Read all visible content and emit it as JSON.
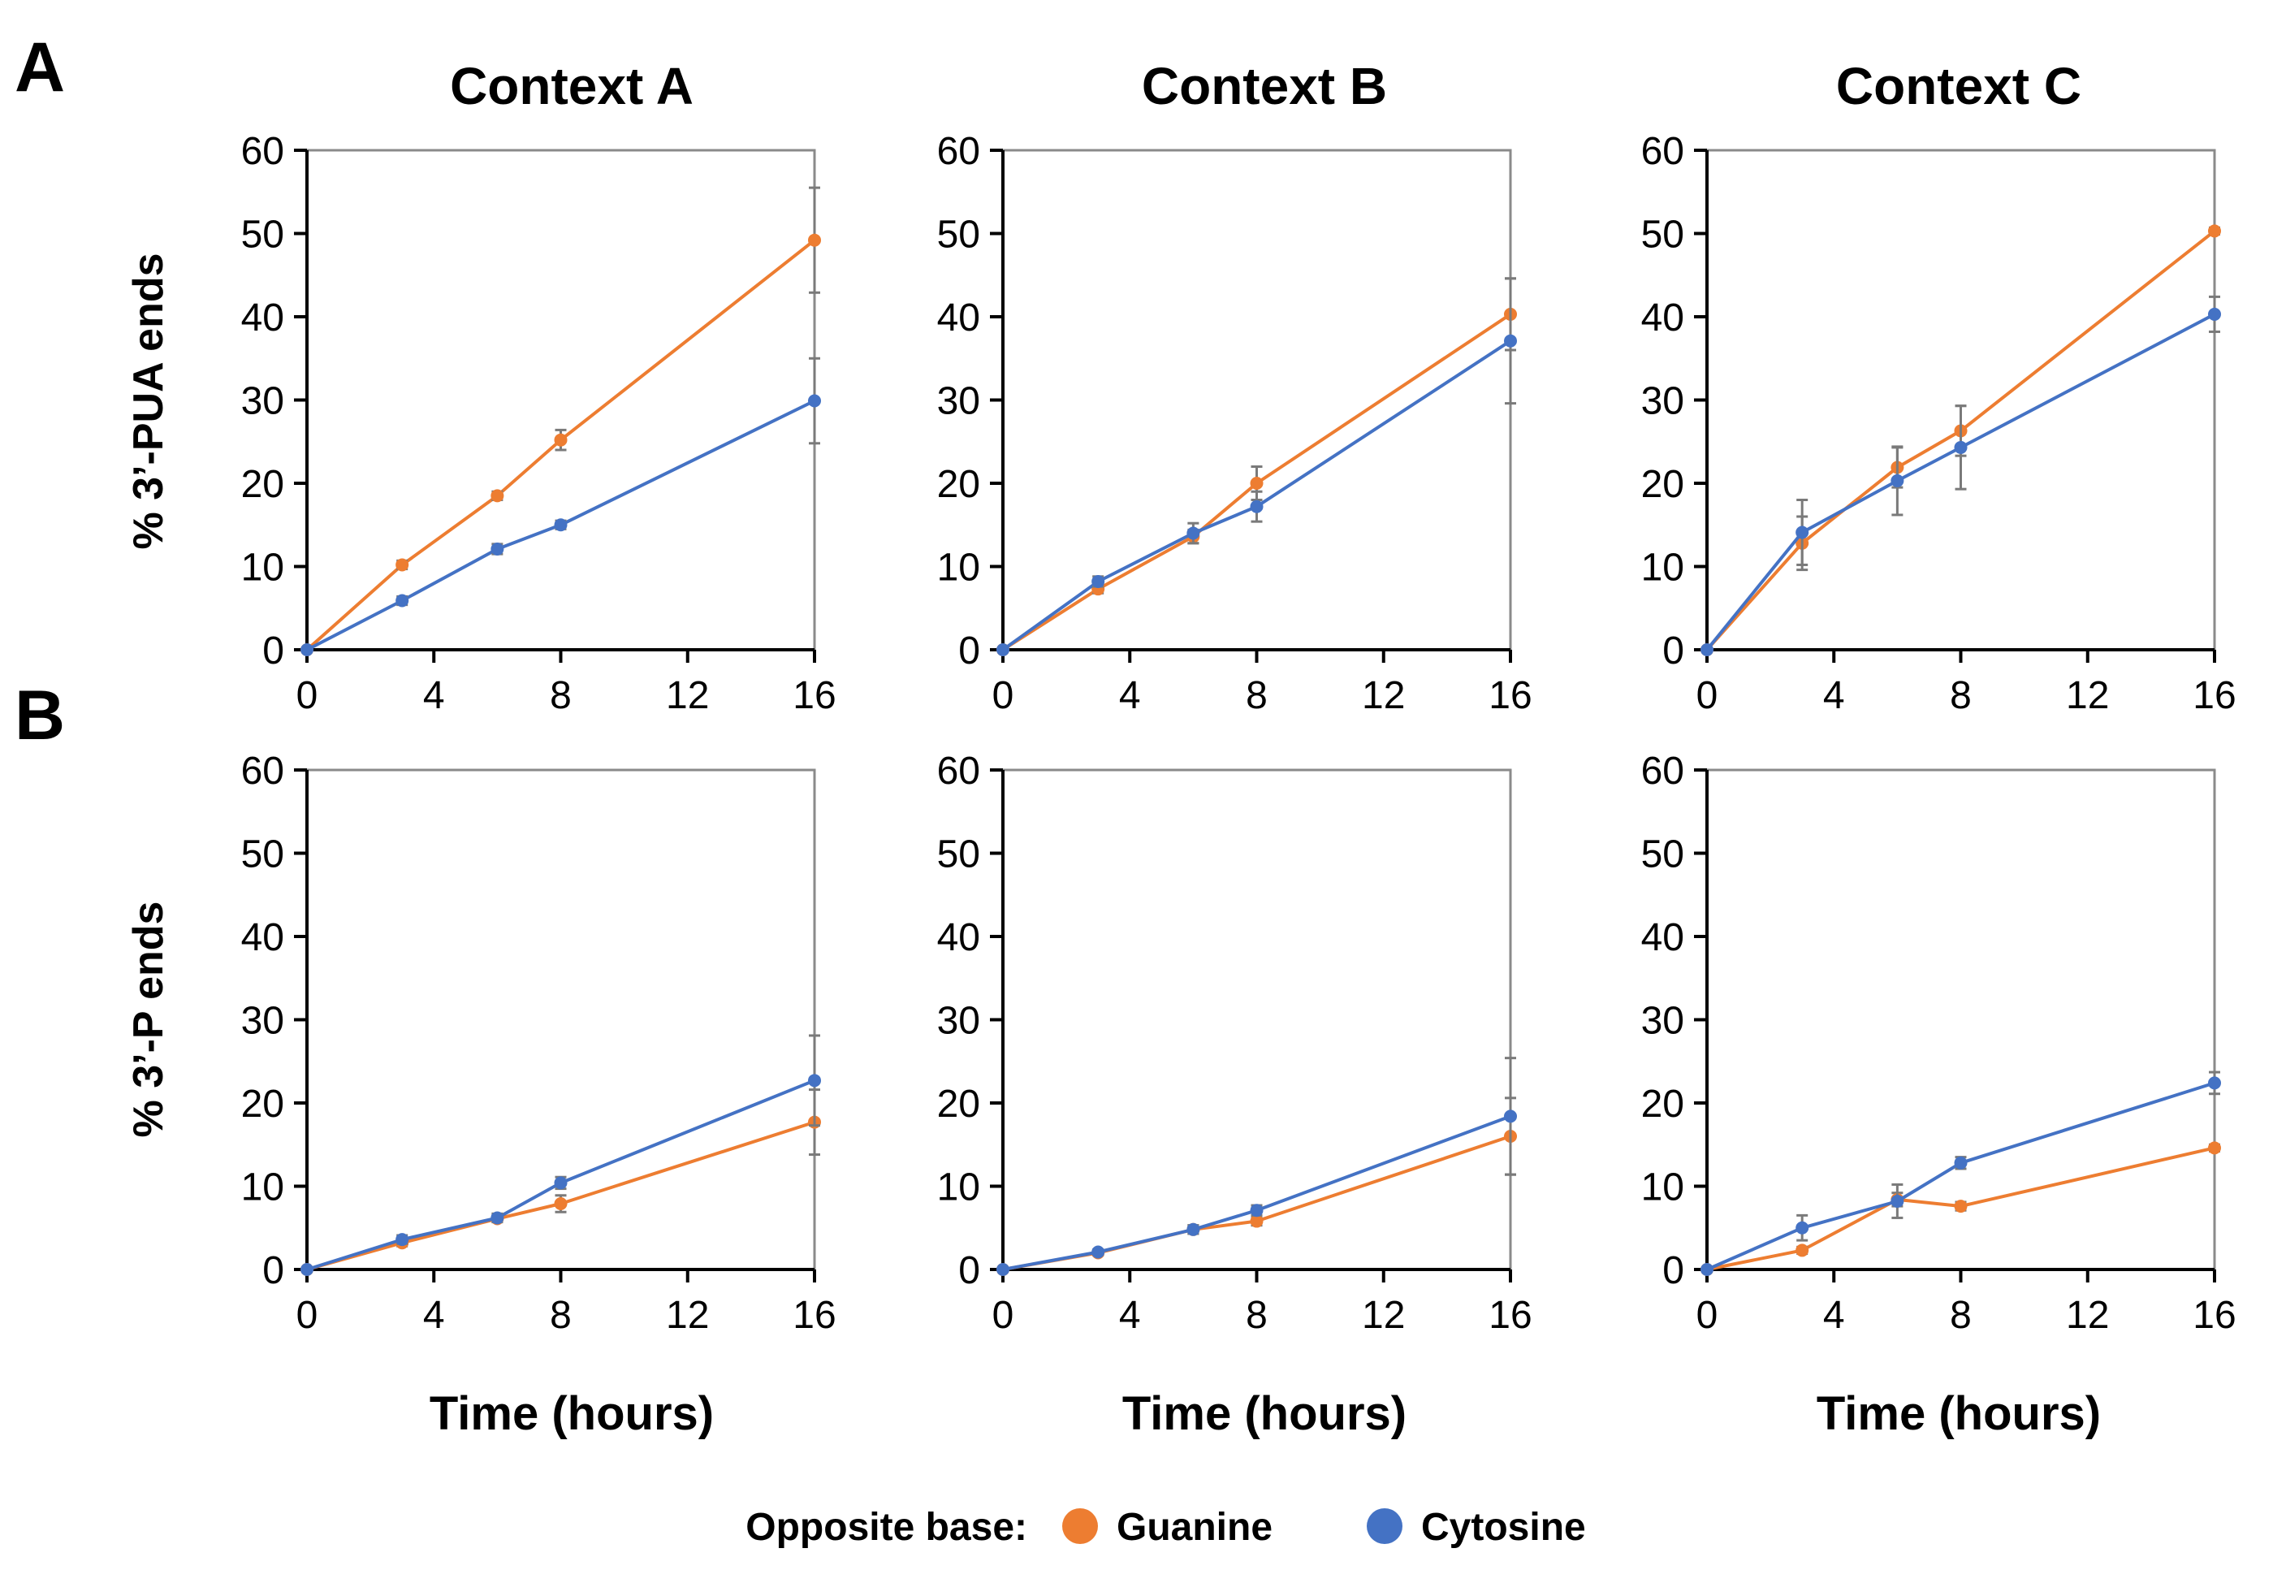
{
  "panel_labels": [
    "A",
    "B"
  ],
  "column_titles": [
    "Context A",
    "Context B",
    "Context C"
  ],
  "ylabels": [
    "% 3’-PUA ends",
    "% 3’-P ends"
  ],
  "xlabel": "Time (hours)",
  "legend": {
    "title": "Opposite base:",
    "items": [
      {
        "label": "Guanine",
        "color": "#ED7D31"
      },
      {
        "label": "Cytosine",
        "color": "#4472C4"
      }
    ]
  },
  "colors": {
    "guanine": "#ED7D31",
    "cytosine": "#4472C4",
    "errorbar": "#7a7a7a"
  },
  "chart_data": [
    {
      "row": "A",
      "col": "Context A",
      "type": "line",
      "ylabel": "% 3’-PUA ends",
      "xlim": [
        0,
        16
      ],
      "ylim": [
        0,
        60
      ],
      "xticks": [
        0,
        4,
        8,
        12,
        16
      ],
      "yticks": [
        0,
        10,
        20,
        30,
        40,
        50,
        60
      ],
      "x": [
        0,
        3,
        6,
        8,
        16
      ],
      "series": [
        {
          "name": "Guanine",
          "values": [
            0,
            10.2,
            18.5,
            25.2,
            49.2
          ],
          "err": [
            0,
            0.5,
            0.5,
            1.2,
            6.3
          ]
        },
        {
          "name": "Cytosine",
          "values": [
            0,
            5.9,
            12.1,
            15.0,
            29.9
          ],
          "err": [
            0,
            0.5,
            0.6,
            0.5,
            5.1
          ]
        }
      ]
    },
    {
      "row": "A",
      "col": "Context B",
      "type": "line",
      "ylabel": "% 3’-PUA ends",
      "xlim": [
        0,
        16
      ],
      "ylim": [
        0,
        60
      ],
      "xticks": [
        0,
        4,
        8,
        12,
        16
      ],
      "yticks": [
        0,
        10,
        20,
        30,
        40,
        50,
        60
      ],
      "x": [
        0,
        3,
        6,
        8,
        16
      ],
      "series": [
        {
          "name": "Guanine",
          "values": [
            0,
            7.3,
            13.6,
            20.0,
            40.3
          ],
          "err": [
            0,
            0.5,
            0.8,
            2.0,
            4.3
          ]
        },
        {
          "name": "Cytosine",
          "values": [
            0,
            8.2,
            14.0,
            17.2,
            37.1
          ],
          "err": [
            0,
            0.6,
            1.2,
            1.8,
            7.5
          ]
        }
      ]
    },
    {
      "row": "A",
      "col": "Context C",
      "type": "line",
      "ylabel": "% 3’-PUA ends",
      "xlim": [
        0,
        16
      ],
      "ylim": [
        0,
        60
      ],
      "xticks": [
        0,
        4,
        8,
        12,
        16
      ],
      "yticks": [
        0,
        10,
        20,
        30,
        40,
        50,
        60
      ],
      "x": [
        0,
        3,
        6,
        8,
        16
      ],
      "series": [
        {
          "name": "Guanine",
          "values": [
            0,
            12.8,
            21.9,
            26.3,
            50.3
          ],
          "err": [
            0,
            3.2,
            2.4,
            3.0,
            0.4
          ]
        },
        {
          "name": "Cytosine",
          "values": [
            0,
            14.1,
            20.3,
            24.3,
            40.3
          ],
          "err": [
            0,
            3.9,
            4.1,
            5.0,
            2.1
          ]
        }
      ]
    },
    {
      "row": "B",
      "col": "Context A",
      "type": "line",
      "ylabel": "% 3’-P ends",
      "xlim": [
        0,
        16
      ],
      "ylim": [
        0,
        60
      ],
      "xticks": [
        0,
        4,
        8,
        12,
        16
      ],
      "yticks": [
        0,
        10,
        20,
        30,
        40,
        50,
        60
      ],
      "x": [
        0,
        3,
        6,
        8,
        16
      ],
      "series": [
        {
          "name": "Guanine",
          "values": [
            0,
            3.2,
            6.1,
            7.9,
            17.7
          ],
          "err": [
            0,
            0.4,
            0.4,
            1.0,
            3.9
          ]
        },
        {
          "name": "Cytosine",
          "values": [
            0,
            3.6,
            6.2,
            10.4,
            22.7
          ],
          "err": [
            0,
            0.5,
            0.5,
            0.7,
            5.4
          ]
        }
      ]
    },
    {
      "row": "B",
      "col": "Context B",
      "type": "line",
      "ylabel": "% 3’-P ends",
      "xlim": [
        0,
        16
      ],
      "ylim": [
        0,
        60
      ],
      "xticks": [
        0,
        4,
        8,
        12,
        16
      ],
      "yticks": [
        0,
        10,
        20,
        30,
        40,
        50,
        60
      ],
      "x": [
        0,
        3,
        6,
        8,
        16
      ],
      "series": [
        {
          "name": "Guanine",
          "values": [
            0,
            2.0,
            4.8,
            5.8,
            16.0
          ],
          "err": [
            0,
            0.3,
            0.5,
            0.5,
            4.6
          ]
        },
        {
          "name": "Cytosine",
          "values": [
            0,
            2.1,
            4.8,
            7.1,
            18.4
          ],
          "err": [
            0,
            0.3,
            0.5,
            0.6,
            7.0
          ]
        }
      ]
    },
    {
      "row": "B",
      "col": "Context C",
      "type": "line",
      "ylabel": "% 3’-P ends",
      "xlim": [
        0,
        16
      ],
      "ylim": [
        0,
        60
      ],
      "xticks": [
        0,
        4,
        8,
        12,
        16
      ],
      "yticks": [
        0,
        10,
        20,
        30,
        40,
        50,
        60
      ],
      "x": [
        0,
        3,
        6,
        8,
        16
      ],
      "series": [
        {
          "name": "Guanine",
          "values": [
            0,
            2.3,
            8.4,
            7.6,
            14.6
          ],
          "err": [
            0,
            0.4,
            0.8,
            0.5,
            0.4
          ]
        },
        {
          "name": "Cytosine",
          "values": [
            0,
            5.0,
            8.2,
            12.8,
            22.4
          ],
          "err": [
            0,
            1.5,
            2.0,
            0.7,
            1.3
          ]
        }
      ]
    }
  ]
}
